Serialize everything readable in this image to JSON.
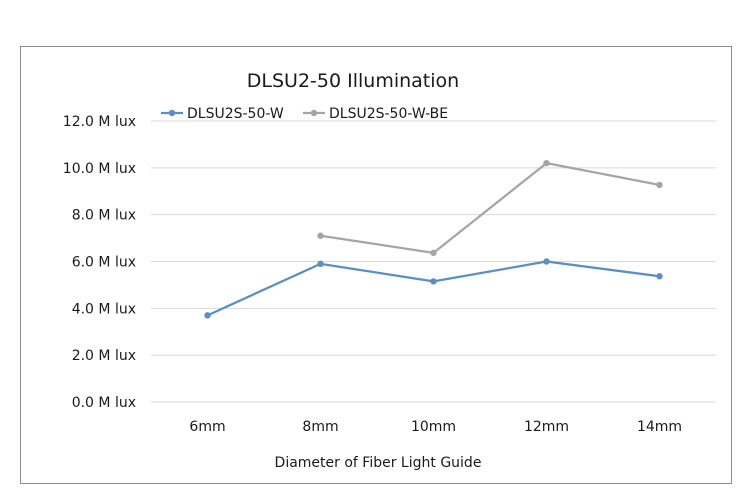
{
  "chart_data": {
    "type": "line",
    "title": "DLSU2-50 Illumination",
    "xlabel": "Diameter of Fiber Light Guide",
    "ylabel": "",
    "categories": [
      "6mm",
      "8mm",
      "10mm",
      "12mm",
      "14mm"
    ],
    "y_ticks": [
      "0.0 M lux",
      "2.0 M lux",
      "4.0 M lux",
      "6.0 M lux",
      "8.0 M lux",
      "10.0 M lux",
      "12.0 M lux"
    ],
    "y_tick_values": [
      0,
      2,
      4,
      6,
      8,
      10,
      12
    ],
    "ylim": [
      0,
      12
    ],
    "grid": true,
    "legend_position": "top-left",
    "series": [
      {
        "name": "DLSU2S-50-W",
        "color": "#5b8ec4",
        "values": [
          3.7,
          5.9,
          5.15,
          6.0,
          5.37
        ]
      },
      {
        "name": "DLSU2S-50-W-BE",
        "color": "#a5a5a5",
        "values": [
          null,
          7.1,
          6.37,
          10.2,
          9.27
        ]
      }
    ]
  }
}
